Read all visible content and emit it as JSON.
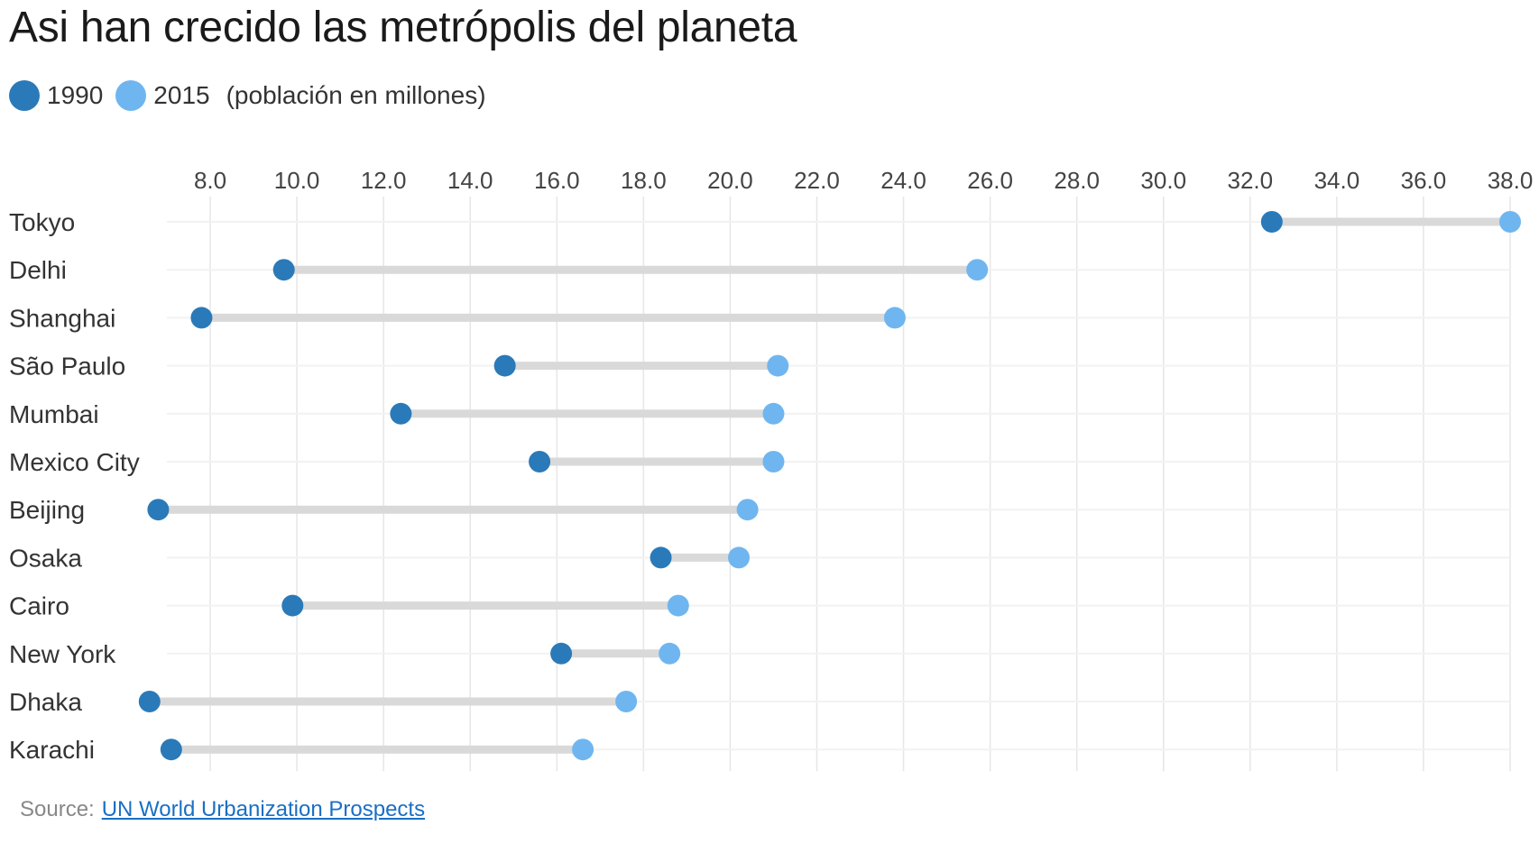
{
  "colors": {
    "c1990": "#2a7ab9",
    "c2015": "#6fb6f0",
    "connector": "#d9d9d9",
    "grid": "#e6e6e6"
  },
  "legend": {
    "label_1990": "1990",
    "label_2015": "2015",
    "unit": "(población en millones)"
  },
  "source": {
    "prefix": "Source:",
    "link_text": "UN World Urbanization Prospects"
  },
  "chart_data": {
    "type": "dumbbell",
    "title": "Asi han crecido las metrópolis del planeta",
    "x_ticks": [
      "8.0",
      "10.0",
      "12.0",
      "14.0",
      "16.0",
      "18.0",
      "20.0",
      "22.0",
      "24.0",
      "26.0",
      "28.0",
      "30.0",
      "32.0",
      "34.0",
      "36.0",
      "38.0"
    ],
    "xlim": [
      7.0,
      38.0
    ],
    "grid": true,
    "legend_position": "top-left",
    "series": [
      {
        "name": "1990",
        "values": [
          32.5,
          9.7,
          7.8,
          14.8,
          12.4,
          15.6,
          6.8,
          18.4,
          9.9,
          16.1,
          6.6,
          7.1
        ]
      },
      {
        "name": "2015",
        "values": [
          38.0,
          25.7,
          23.8,
          21.1,
          21.0,
          21.0,
          20.4,
          20.2,
          18.8,
          18.6,
          17.6,
          16.6
        ]
      }
    ],
    "categories": [
      "Tokyo",
      "Delhi",
      "Shanghai",
      "São Paulo",
      "Mumbai",
      "Mexico City",
      "Beijing",
      "Osaka",
      "Cairo",
      "New York",
      "Dhaka",
      "Karachi"
    ]
  }
}
